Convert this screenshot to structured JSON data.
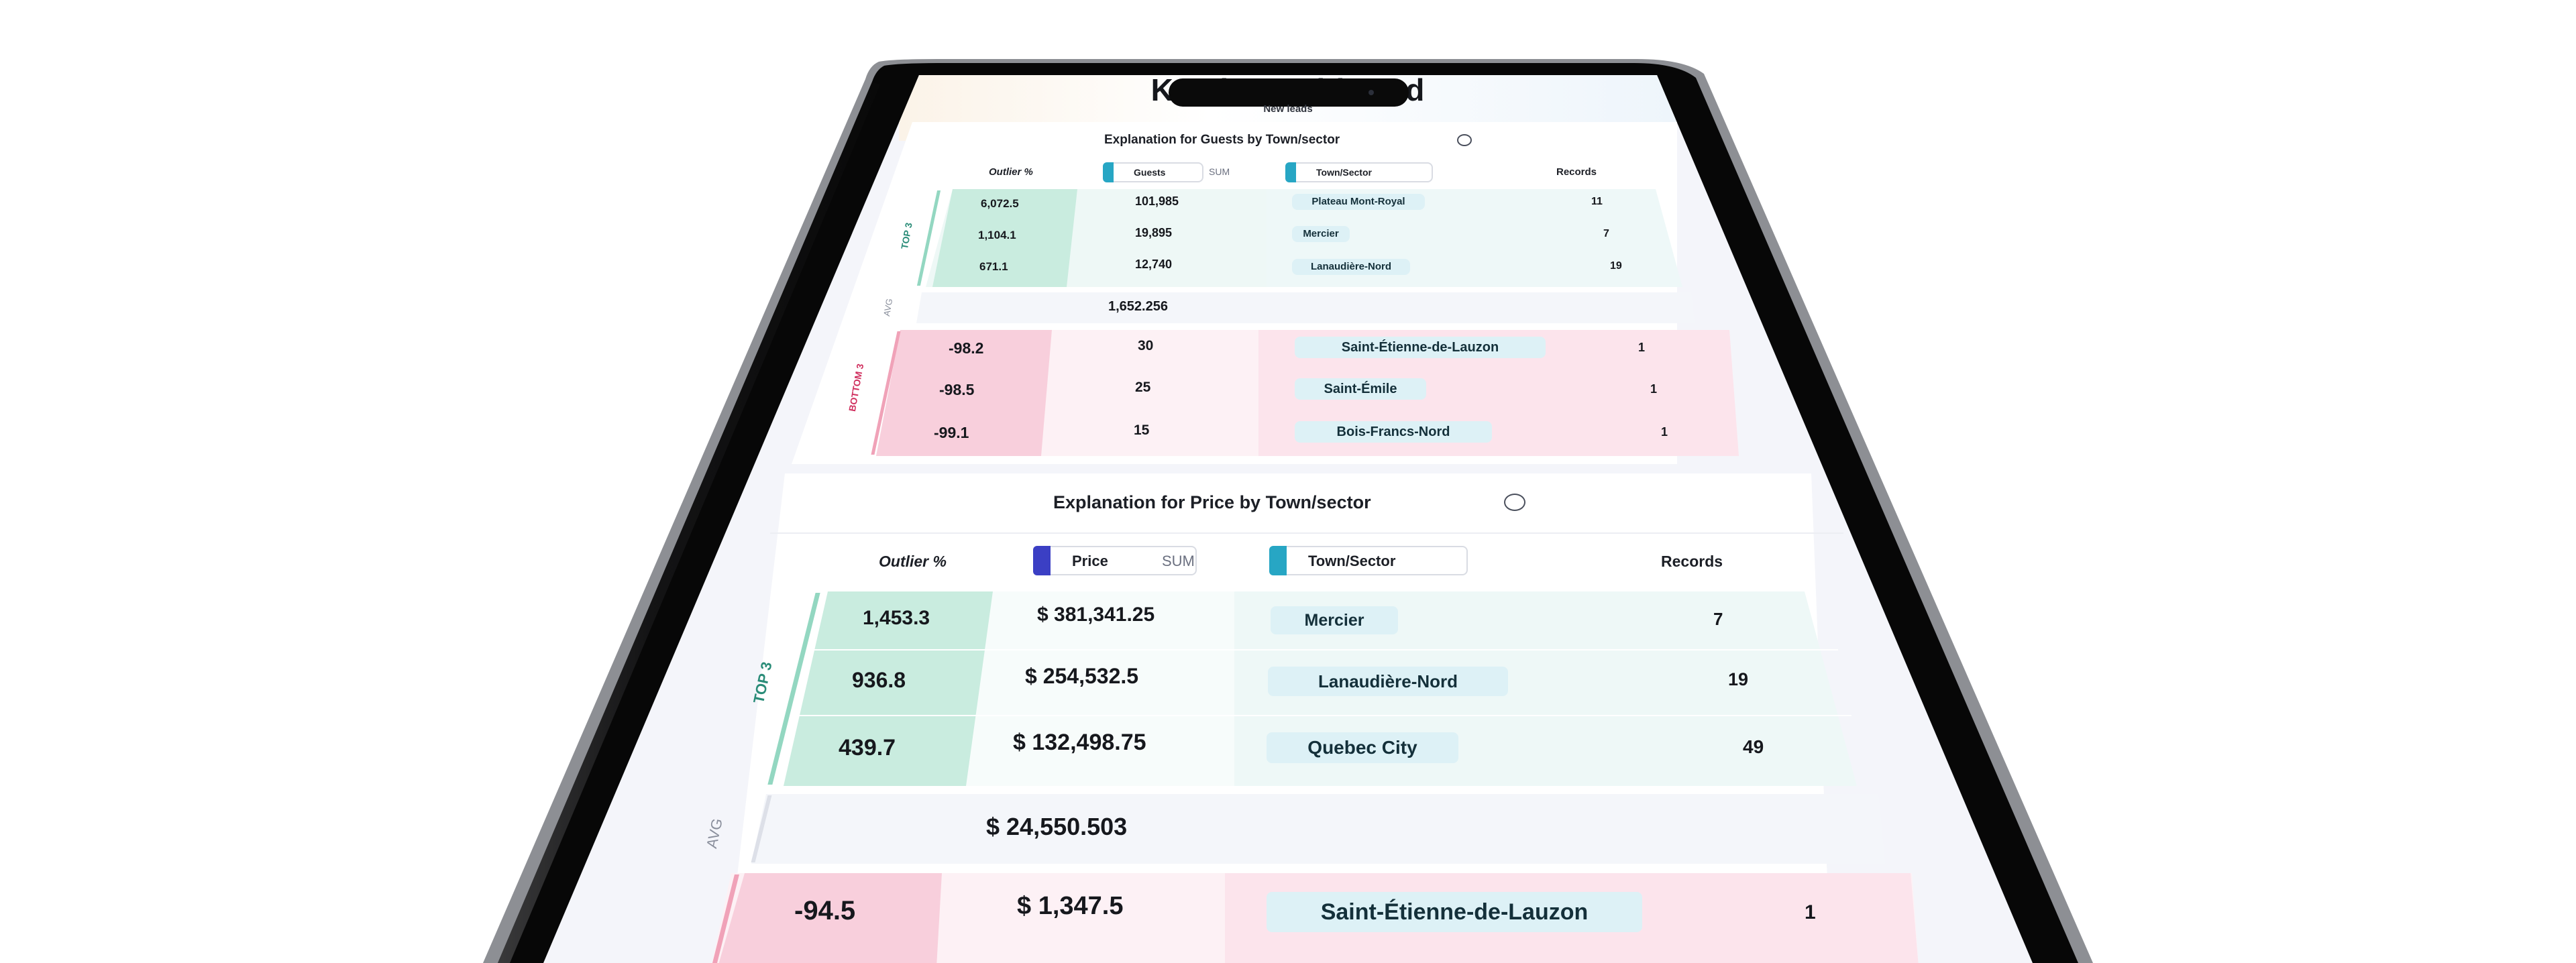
{
  "dashboard": {
    "title": "Kamio Dashboard",
    "subtitle": "New leads"
  },
  "card_guests": {
    "title": "Explanation for Guests by Town/sector",
    "headers": {
      "outlier": "Outlier %",
      "measure": "Guests",
      "measure_agg": "SUM",
      "dimension": "Town/Sector",
      "records": "Records"
    },
    "top_label": "TOP 3",
    "avg_label": "AVG",
    "bottom_label": "BOTTOM 3",
    "top": [
      {
        "outlier": "6,072.5",
        "value": "101,985",
        "town": "Plateau Mont-Royal",
        "records": "11"
      },
      {
        "outlier": "1,104.1",
        "value": "19,895",
        "town": "Mercier",
        "records": "7"
      },
      {
        "outlier": "671.1",
        "value": "12,740",
        "town": "Lanaudière-Nord",
        "records": "19"
      }
    ],
    "avg": "1,652.256",
    "bottom": [
      {
        "outlier": "-98.2",
        "value": "30",
        "town": "Saint-Étienne-de-Lauzon",
        "records": "1"
      },
      {
        "outlier": "-98.5",
        "value": "25",
        "town": "Saint-Émile",
        "records": "1"
      },
      {
        "outlier": "-99.1",
        "value": "15",
        "town": "Bois-Francs-Nord",
        "records": "1"
      }
    ]
  },
  "card_price": {
    "title": "Explanation for Price by Town/sector",
    "headers": {
      "outlier": "Outlier %",
      "measure": "Price",
      "measure_agg": "SUM",
      "dimension": "Town/Sector",
      "records": "Records"
    },
    "top_label": "TOP 3",
    "avg_label": "AVG",
    "top": [
      {
        "outlier": "1,453.3",
        "value": "$ 381,341.25",
        "town": "Mercier",
        "records": "7"
      },
      {
        "outlier": "936.8",
        "value": "$ 254,532.5",
        "town": "Lanaudière-Nord",
        "records": "19"
      },
      {
        "outlier": "439.7",
        "value": "$ 132,498.75",
        "town": "Quebec City",
        "records": "49"
      }
    ],
    "avg": "$ 24,550.503",
    "bottom": [
      {
        "outlier": "-94.5",
        "value": "$ 1,347.5",
        "town": "Saint-Étienne-de-Lauzon",
        "records": "1"
      }
    ]
  },
  "colors": {
    "top_fill": "#c9ecdf",
    "bottom_fill": "#f8cfdc",
    "measure_tab": "#3b3fc4",
    "dimension_tab": "#27a6c4",
    "top_label": "#2a8c78",
    "bottom_label": "#d0305f"
  }
}
